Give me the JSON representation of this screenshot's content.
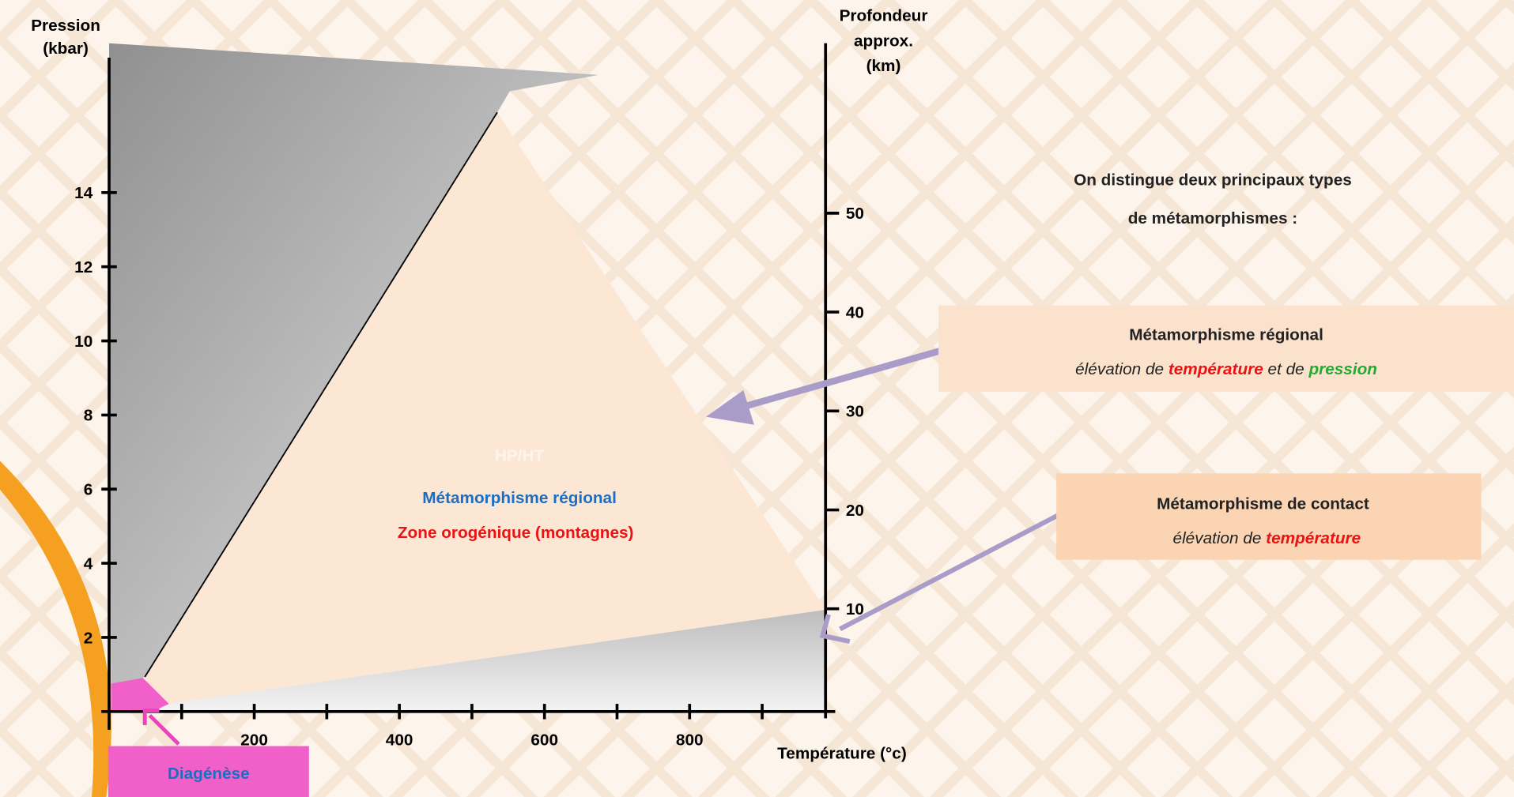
{
  "axes": {
    "pressure": {
      "label_lines": [
        "Pression",
        "(kbar)"
      ],
      "ticks": [
        2,
        4,
        6,
        8,
        10,
        12,
        14
      ]
    },
    "depth": {
      "label_lines": [
        "Profondeur",
        "approx.",
        "(km)"
      ],
      "ticks": [
        10,
        20,
        30,
        40,
        50
      ]
    },
    "temperature": {
      "label": "Température (°c)",
      "ticks": [
        200,
        400,
        600,
        800
      ]
    }
  },
  "zones": {
    "hpht": "HP/HT",
    "regional": "Métamorphisme régional",
    "orogenic": "Zone orogénique (montagnes)",
    "diagenesis": "Diagénèse"
  },
  "intro": [
    "On distingue deux principaux types",
    "de métamorphismes :"
  ],
  "regional_box": {
    "title": "Métamorphisme régional",
    "desc": [
      "élévation de ",
      "température",
      " et de ",
      "pression"
    ]
  },
  "contact_box": {
    "title": "Métamorphisme de contact",
    "desc": [
      "élévation de ",
      "température"
    ]
  }
}
